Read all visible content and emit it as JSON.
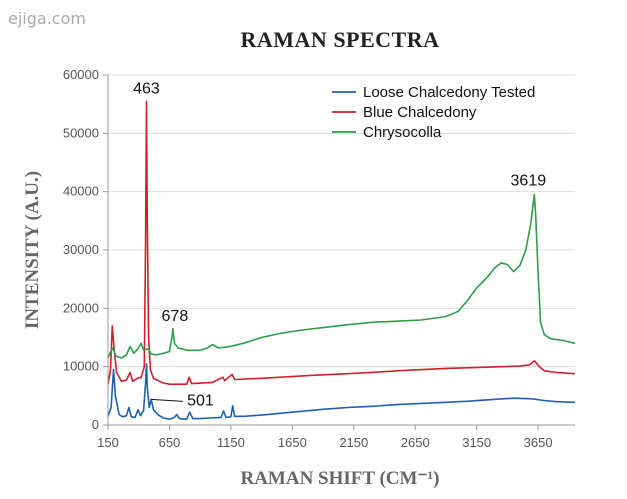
{
  "watermark": "ejiga.com",
  "chart_data": {
    "type": "line",
    "title": "Raman Spectra",
    "xlabel": "Raman Shift (cm⁻¹)",
    "ylabel": "Intensity (a.u.)",
    "xlim": [
      150,
      3950
    ],
    "ylim": [
      0,
      60000
    ],
    "x_ticks": [
      150,
      650,
      1150,
      1650,
      2150,
      2650,
      3150,
      3650
    ],
    "y_ticks": [
      0,
      10000,
      20000,
      30000,
      40000,
      50000,
      60000
    ],
    "legend": {
      "placement": "top-right",
      "entries": [
        {
          "label": "Loose Chalcedony Tested",
          "color": "#1f5fb4"
        },
        {
          "label": "Blue Chalcedony",
          "color": "#d0202b"
        },
        {
          "label": "Chrysocolla",
          "color": "#2e9e48"
        }
      ]
    },
    "annotations": [
      {
        "text": "463",
        "x": 463,
        "y": 55500
      },
      {
        "text": "678",
        "x": 678,
        "y": 16500
      },
      {
        "text": "501",
        "x": 501,
        "y": 4400
      },
      {
        "text": "3619",
        "x": 3619,
        "y": 40000
      }
    ],
    "series": [
      {
        "name": "Loose Chalcedony Tested",
        "color": "#1f5fb4",
        "points": [
          [
            150,
            1500
          ],
          [
            175,
            3000
          ],
          [
            195,
            9500
          ],
          [
            210,
            5000
          ],
          [
            240,
            1800
          ],
          [
            270,
            1400
          ],
          [
            300,
            1600
          ],
          [
            320,
            3000
          ],
          [
            340,
            1400
          ],
          [
            370,
            1300
          ],
          [
            395,
            2600
          ],
          [
            415,
            1600
          ],
          [
            440,
            2500
          ],
          [
            455,
            7000
          ],
          [
            463,
            10500
          ],
          [
            470,
            6500
          ],
          [
            485,
            3000
          ],
          [
            501,
            4400
          ],
          [
            520,
            2600
          ],
          [
            560,
            1700
          ],
          [
            600,
            1200
          ],
          [
            650,
            1000
          ],
          [
            690,
            1300
          ],
          [
            710,
            1800
          ],
          [
            730,
            1100
          ],
          [
            790,
            1000
          ],
          [
            815,
            2200
          ],
          [
            840,
            1100
          ],
          [
            900,
            1100
          ],
          [
            980,
            1200
          ],
          [
            1070,
            1300
          ],
          [
            1090,
            2400
          ],
          [
            1110,
            1300
          ],
          [
            1150,
            1400
          ],
          [
            1165,
            3300
          ],
          [
            1180,
            1500
          ],
          [
            1250,
            1500
          ],
          [
            1400,
            1700
          ],
          [
            1550,
            2000
          ],
          [
            1700,
            2300
          ],
          [
            1900,
            2700
          ],
          [
            2100,
            3000
          ],
          [
            2300,
            3200
          ],
          [
            2500,
            3500
          ],
          [
            2700,
            3700
          ],
          [
            2900,
            3900
          ],
          [
            3100,
            4100
          ],
          [
            3300,
            4400
          ],
          [
            3450,
            4600
          ],
          [
            3600,
            4500
          ],
          [
            3700,
            4200
          ],
          [
            3800,
            4000
          ],
          [
            3950,
            3900
          ]
        ]
      },
      {
        "name": "Blue Chalcedony",
        "color": "#d0202b",
        "points": [
          [
            150,
            7000
          ],
          [
            170,
            9500
          ],
          [
            185,
            17000
          ],
          [
            200,
            13000
          ],
          [
            220,
            9000
          ],
          [
            260,
            7500
          ],
          [
            300,
            7700
          ],
          [
            330,
            9000
          ],
          [
            350,
            7500
          ],
          [
            390,
            8000
          ],
          [
            420,
            8200
          ],
          [
            445,
            10000
          ],
          [
            455,
            30000
          ],
          [
            463,
            55500
          ],
          [
            470,
            35000
          ],
          [
            480,
            15000
          ],
          [
            495,
            9500
          ],
          [
            520,
            8000
          ],
          [
            600,
            7200
          ],
          [
            650,
            7000
          ],
          [
            700,
            7000
          ],
          [
            790,
            7000
          ],
          [
            810,
            8200
          ],
          [
            830,
            7100
          ],
          [
            1000,
            7300
          ],
          [
            1085,
            8200
          ],
          [
            1100,
            7600
          ],
          [
            1160,
            8700
          ],
          [
            1180,
            7800
          ],
          [
            1400,
            8000
          ],
          [
            1800,
            8500
          ],
          [
            2200,
            8900
          ],
          [
            2600,
            9400
          ],
          [
            2900,
            9700
          ],
          [
            3200,
            9900
          ],
          [
            3500,
            10100
          ],
          [
            3580,
            10300
          ],
          [
            3620,
            11000
          ],
          [
            3660,
            10000
          ],
          [
            3700,
            9300
          ],
          [
            3800,
            9000
          ],
          [
            3950,
            8800
          ]
        ]
      },
      {
        "name": "Chrysocolla",
        "color": "#2e9e48",
        "points": [
          [
            150,
            11500
          ],
          [
            170,
            12500
          ],
          [
            190,
            13200
          ],
          [
            215,
            11800
          ],
          [
            260,
            11500
          ],
          [
            300,
            12000
          ],
          [
            330,
            13500
          ],
          [
            360,
            12300
          ],
          [
            390,
            13000
          ],
          [
            420,
            14000
          ],
          [
            440,
            12800
          ],
          [
            463,
            13000
          ],
          [
            480,
            13000
          ],
          [
            500,
            12200
          ],
          [
            540,
            12000
          ],
          [
            600,
            12300
          ],
          [
            650,
            12600
          ],
          [
            670,
            15000
          ],
          [
            678,
            16500
          ],
          [
            690,
            14000
          ],
          [
            720,
            13200
          ],
          [
            800,
            12800
          ],
          [
            900,
            12800
          ],
          [
            960,
            13200
          ],
          [
            1000,
            13800
          ],
          [
            1050,
            13200
          ],
          [
            1150,
            13500
          ],
          [
            1250,
            14000
          ],
          [
            1400,
            15000
          ],
          [
            1550,
            15700
          ],
          [
            1700,
            16200
          ],
          [
            1900,
            16700
          ],
          [
            2100,
            17200
          ],
          [
            2300,
            17600
          ],
          [
            2500,
            17800
          ],
          [
            2700,
            18000
          ],
          [
            2900,
            18600
          ],
          [
            3000,
            19500
          ],
          [
            3080,
            21500
          ],
          [
            3150,
            23500
          ],
          [
            3230,
            25200
          ],
          [
            3300,
            27000
          ],
          [
            3350,
            27800
          ],
          [
            3400,
            27500
          ],
          [
            3450,
            26300
          ],
          [
            3500,
            27300
          ],
          [
            3550,
            30000
          ],
          [
            3590,
            34500
          ],
          [
            3610,
            38000
          ],
          [
            3619,
            39500
          ],
          [
            3630,
            36000
          ],
          [
            3650,
            26000
          ],
          [
            3670,
            17500
          ],
          [
            3700,
            15500
          ],
          [
            3750,
            14800
          ],
          [
            3850,
            14500
          ],
          [
            3950,
            14000
          ]
        ]
      }
    ]
  }
}
